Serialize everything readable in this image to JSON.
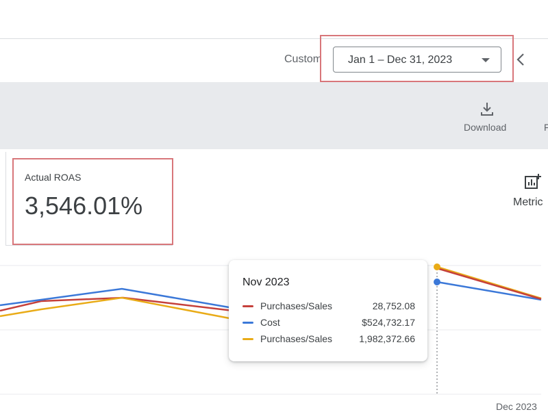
{
  "header": {
    "range_label": "Custom",
    "date_range_value": "Jan 1 – Dec 31, 2023"
  },
  "toolbar": {
    "download_label": "Download",
    "next_item_label_partial": "F"
  },
  "scorecard": {
    "title": "Actual ROAS",
    "value": "3,546.01%"
  },
  "metrics_button": {
    "label": "Metric"
  },
  "colors": {
    "purchases_red": "#c5403b",
    "cost_blue": "#3b78d8",
    "purchases_yellow": "#e9ab17",
    "highlight_border": "#d8767a"
  },
  "tooltip": {
    "title": "Nov 2023",
    "rows": [
      {
        "name": "Purchases/Sales",
        "value": "28,752.08",
        "color": "#c5403b"
      },
      {
        "name": "Cost",
        "value": "$524,732.17",
        "color": "#3b78d8"
      },
      {
        "name": "Purchases/Sales",
        "value": "1,982,372.66",
        "color": "#e9ab17"
      }
    ]
  },
  "chart_axis": {
    "x_label_right": "Dec 2023"
  },
  "icons": {
    "dropdown": "chevron-down-icon",
    "prev": "chevron-left-icon",
    "download": "download-icon",
    "metrics": "add-chart-icon"
  }
}
